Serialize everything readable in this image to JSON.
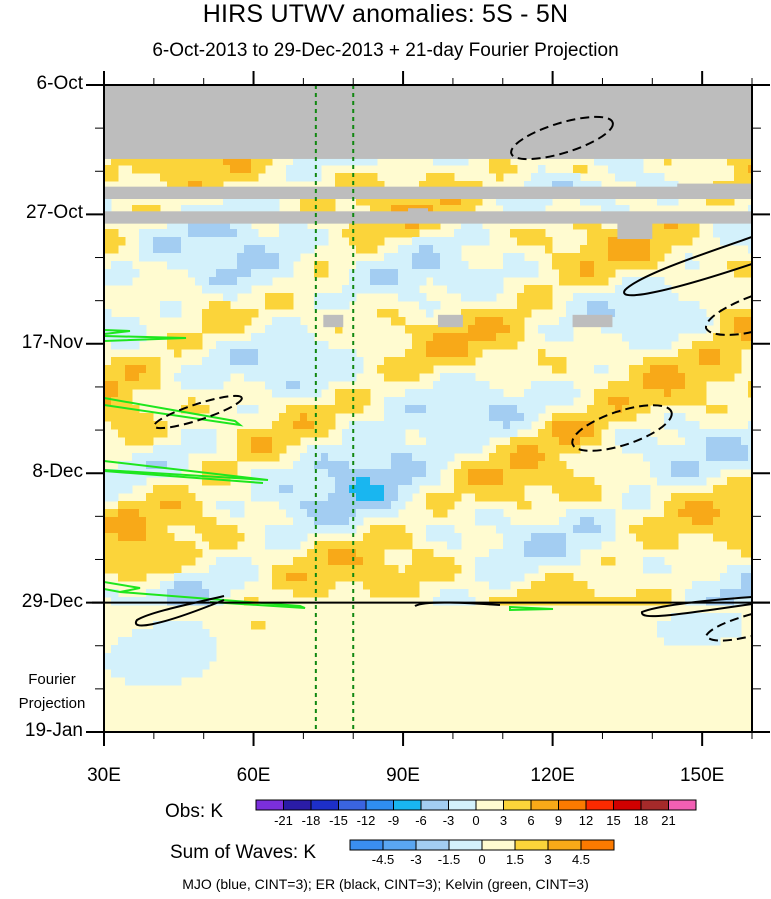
{
  "chart_data": {
    "type": "heatmap",
    "title": "HIRS UTWV anomalies: 5S - 5N",
    "subtitle": "6-Oct-2013 to 29-Dec-2013 + 21-day Fourier Projection",
    "xlim": [
      30,
      160
    ],
    "x_ticks": [
      "30E",
      "60E",
      "90E",
      "120E",
      "150E"
    ],
    "x_tick_values": [
      30,
      60,
      90,
      120,
      150
    ],
    "y_ticks": [
      "6-Oct",
      "27-Oct",
      "17-Nov",
      "8-Dec",
      "29-Dec",
      "19-Jan"
    ],
    "y_tick_days": [
      0,
      21,
      42,
      63,
      84,
      105
    ],
    "observation_end_day": 84,
    "projection_label": "Fourier\nProjection",
    "missing_data_regions": [
      {
        "lon": [
          30,
          160
        ],
        "days": [
          0,
          12
        ]
      },
      {
        "lon": [
          30,
          160
        ],
        "days": [
          16.5,
          18.5
        ]
      },
      {
        "lon": [
          30,
          160
        ],
        "days": [
          20.5,
          22.5
        ]
      }
    ],
    "reference_longitudes": [
      72.5,
      80
    ],
    "obs_colorbar": {
      "title": "Obs: K",
      "levels": [
        "-21",
        "-18",
        "-15",
        "-12",
        "-9",
        "-6",
        "-3",
        "0",
        "3",
        "6",
        "9",
        "12",
        "15",
        "18",
        "21"
      ],
      "colors": [
        "#7b2fdc",
        "#2a1ca6",
        "#1d2fc9",
        "#3a64e0",
        "#2f8ef0",
        "#19b6f0",
        "#a3cdf2",
        "#d3f1fb",
        "#fffbd0",
        "#fbd43a",
        "#f8a918",
        "#fb7a00",
        "#fb2a00",
        "#d00000",
        "#a52a2a",
        "#f25fb4"
      ]
    },
    "waves_colorbar": {
      "title": "Sum of Waves: K",
      "levels": [
        "-4.5",
        "-3",
        "-1.5",
        "0",
        "1.5",
        "3",
        "4.5"
      ],
      "colors": [
        "#3a8ef0",
        "#5aa6f2",
        "#a3cdf2",
        "#d3f1fb",
        "#fffbd0",
        "#fbd43a",
        "#f8a918",
        "#fb7a00"
      ]
    },
    "wave_contours": "MJO (blue, CINT=3); ER (black, CINT=3); Kelvin (green, CINT=3)",
    "wave_line_colors": {
      "MJO": "#1d2fc9",
      "ER": "#000000",
      "Kelvin": "#1ee61e"
    }
  }
}
